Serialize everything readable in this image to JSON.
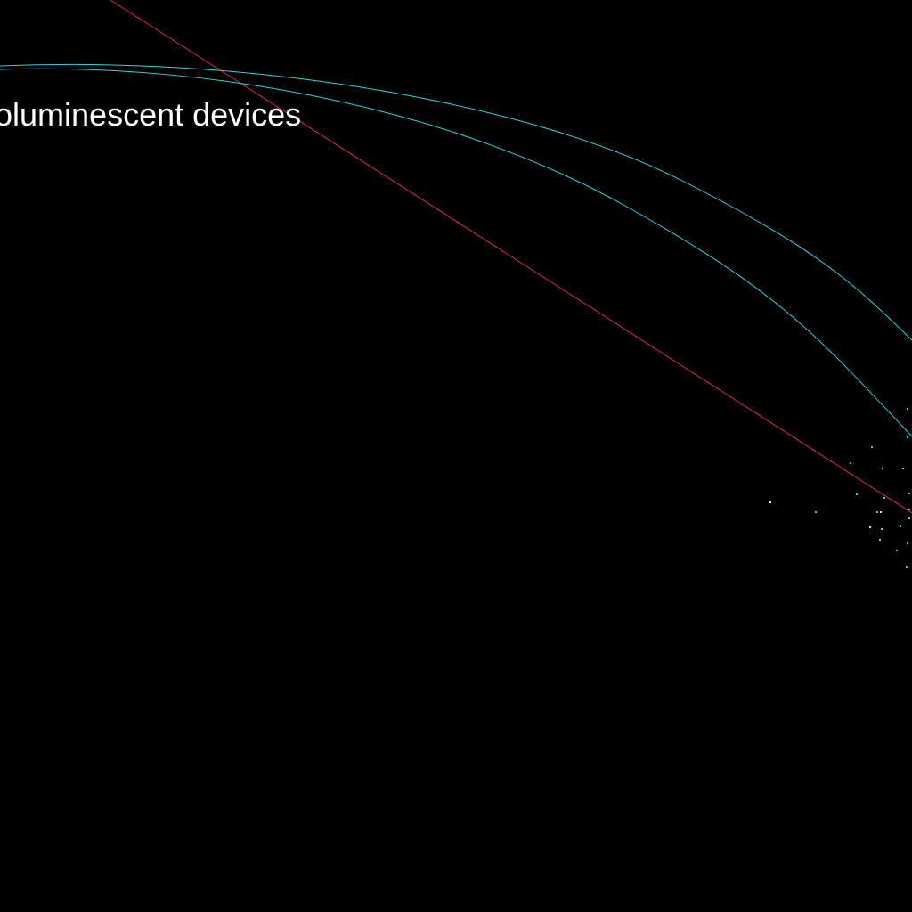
{
  "canvas": {
    "background": "#000000"
  },
  "labels": {
    "node_label": "oluminescent devices"
  },
  "colors": {
    "curve": "#2fd3e0",
    "line": "#e0206a",
    "point_cyan": "#2fd3e0",
    "point_yellow": "#f4f040",
    "text": "#ffffff"
  }
}
